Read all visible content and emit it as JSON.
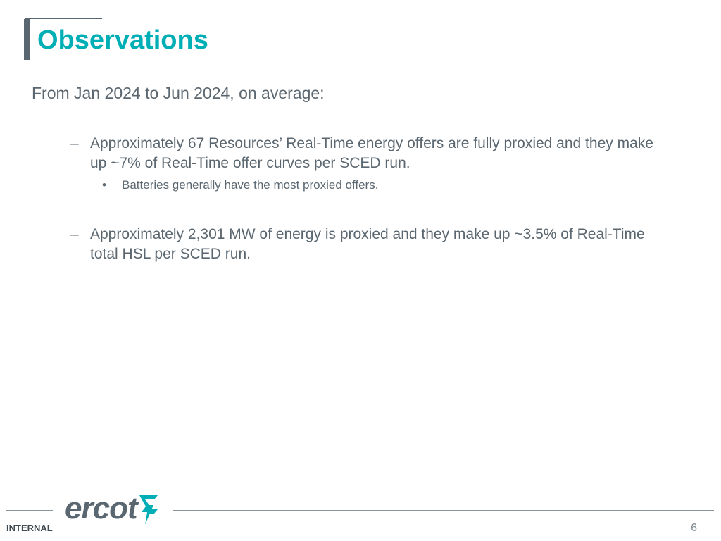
{
  "slide": {
    "title": "Observations",
    "intro": "From Jan 2024 to Jun 2024, on average:",
    "bullets": [
      {
        "marker": "–",
        "text": "Approximately 67 Resources’ Real-Time energy offers are fully proxied and they make up ~7% of Real-Time offer curves per SCED run.",
        "sub_bullets": [
          {
            "marker": "•",
            "text": "Batteries generally have the most proxied offers."
          }
        ]
      },
      {
        "marker": "–",
        "text": "Approximately 2,301 MW of energy is proxied and they make up ~3.5% of Real-Time total HSL per SCED run."
      }
    ]
  },
  "footer": {
    "logo_text": "ercot",
    "classification": "INTERNAL",
    "page_number": "6"
  },
  "colors": {
    "title": "#00aeb6",
    "body_text": "#5b6770",
    "accent_bar": "#5b6770",
    "logo_mark": "#00aeb6",
    "footer_rule": "#8a949b"
  },
  "icons": {
    "logo_mark": "ercot-lightning-mark-icon"
  }
}
